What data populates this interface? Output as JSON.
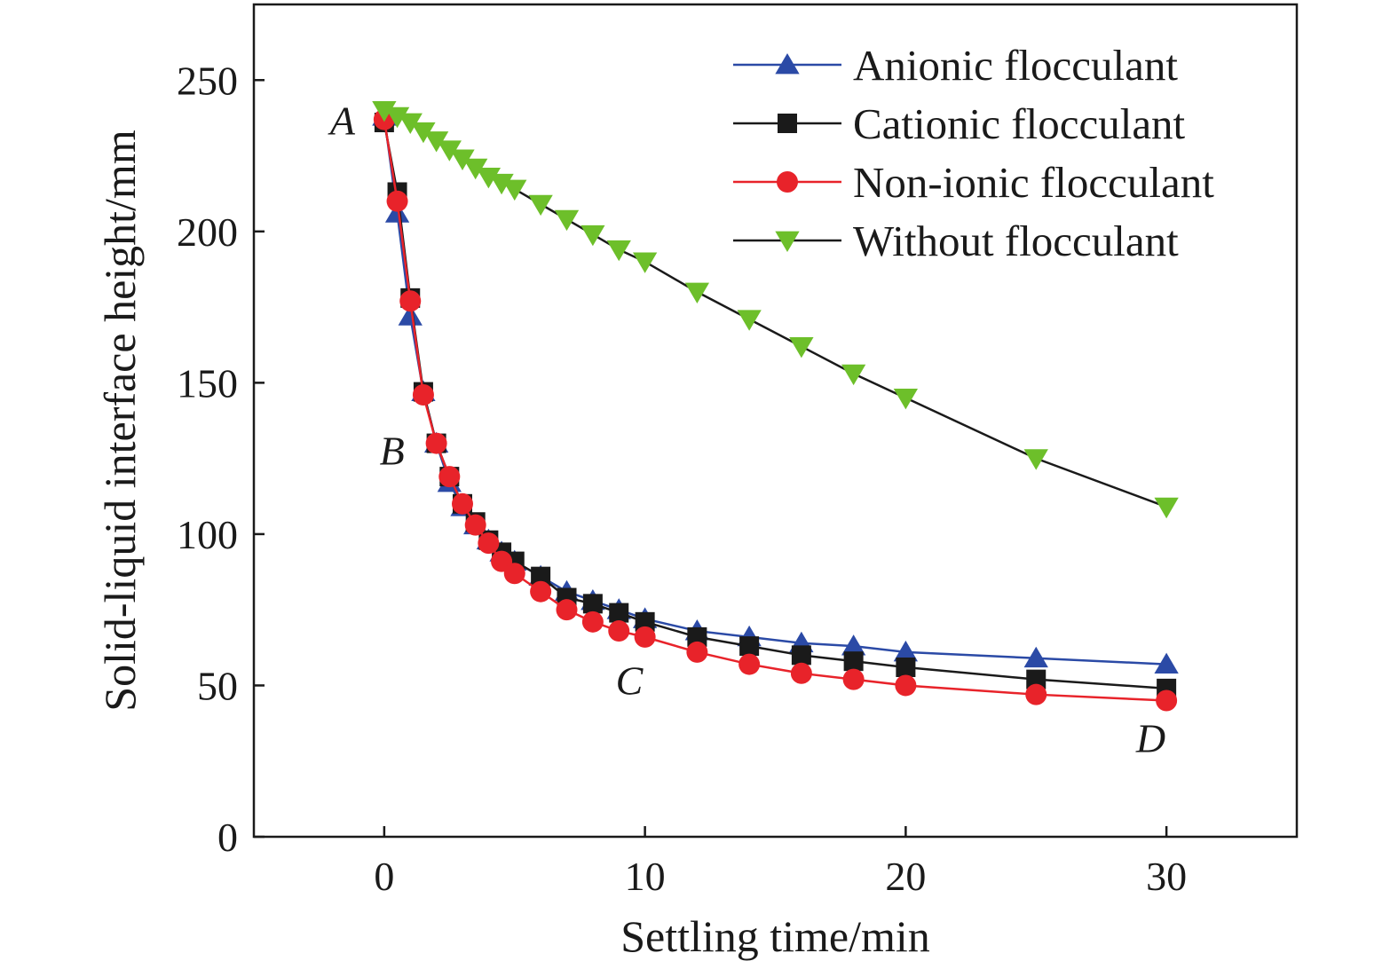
{
  "chart_data": {
    "type": "line",
    "xlabel": "Settling time/min",
    "ylabel": "Solid-liquid interface height/mm",
    "xlim": [
      -5,
      35
    ],
    "ylim": [
      0,
      275
    ],
    "xticks": [
      0,
      10,
      20,
      30
    ],
    "yticks": [
      0,
      50,
      100,
      150,
      200,
      250
    ],
    "grid": false,
    "legend_position": "top-right",
    "x": [
      0,
      0.5,
      1,
      1.5,
      2,
      2.5,
      3,
      3.5,
      4,
      4.5,
      5,
      6,
      7,
      8,
      9,
      10,
      12,
      14,
      16,
      18,
      20,
      25,
      30
    ],
    "series": [
      {
        "name": "Anionic flocculant",
        "color": "#2b4aa6",
        "marker": "triangle-up",
        "values": [
          238,
          206,
          172,
          147,
          130,
          117,
          109,
          103,
          98,
          94,
          91,
          86,
          81,
          78,
          75,
          72,
          68,
          66,
          64,
          63,
          61,
          59,
          57
        ]
      },
      {
        "name": "Cationic flocculant",
        "color": "#1a1a1a",
        "marker": "square",
        "values": [
          236,
          213,
          178,
          147,
          130,
          119,
          110,
          104,
          98,
          94,
          91,
          86,
          79,
          77,
          74,
          71,
          66,
          63,
          60,
          58,
          56,
          52,
          49
        ]
      },
      {
        "name": "Non-ionic flocculant",
        "color": "#e8232a",
        "marker": "circle",
        "values": [
          237,
          210,
          177,
          146,
          130,
          119,
          110,
          103,
          97,
          91,
          87,
          81,
          75,
          71,
          68,
          66,
          61,
          57,
          54,
          52,
          50,
          47,
          45
        ]
      },
      {
        "name": "Without flocculant",
        "color": "#6dbf2a",
        "line_color": "#1a1a1a",
        "marker": "triangle-down",
        "values": [
          240,
          238,
          236,
          233,
          230,
          227,
          224,
          221,
          218,
          216,
          214,
          209,
          204,
          199,
          194,
          190,
          180,
          171,
          162,
          153,
          145,
          125,
          109
        ]
      }
    ],
    "annotations": [
      {
        "text": "A",
        "x": -1.6,
        "y": 232
      },
      {
        "text": "B",
        "x": 0.3,
        "y": 123
      },
      {
        "text": "C",
        "x": 9.4,
        "y": 47
      },
      {
        "text": "D",
        "x": 29.4,
        "y": 28
      }
    ]
  }
}
